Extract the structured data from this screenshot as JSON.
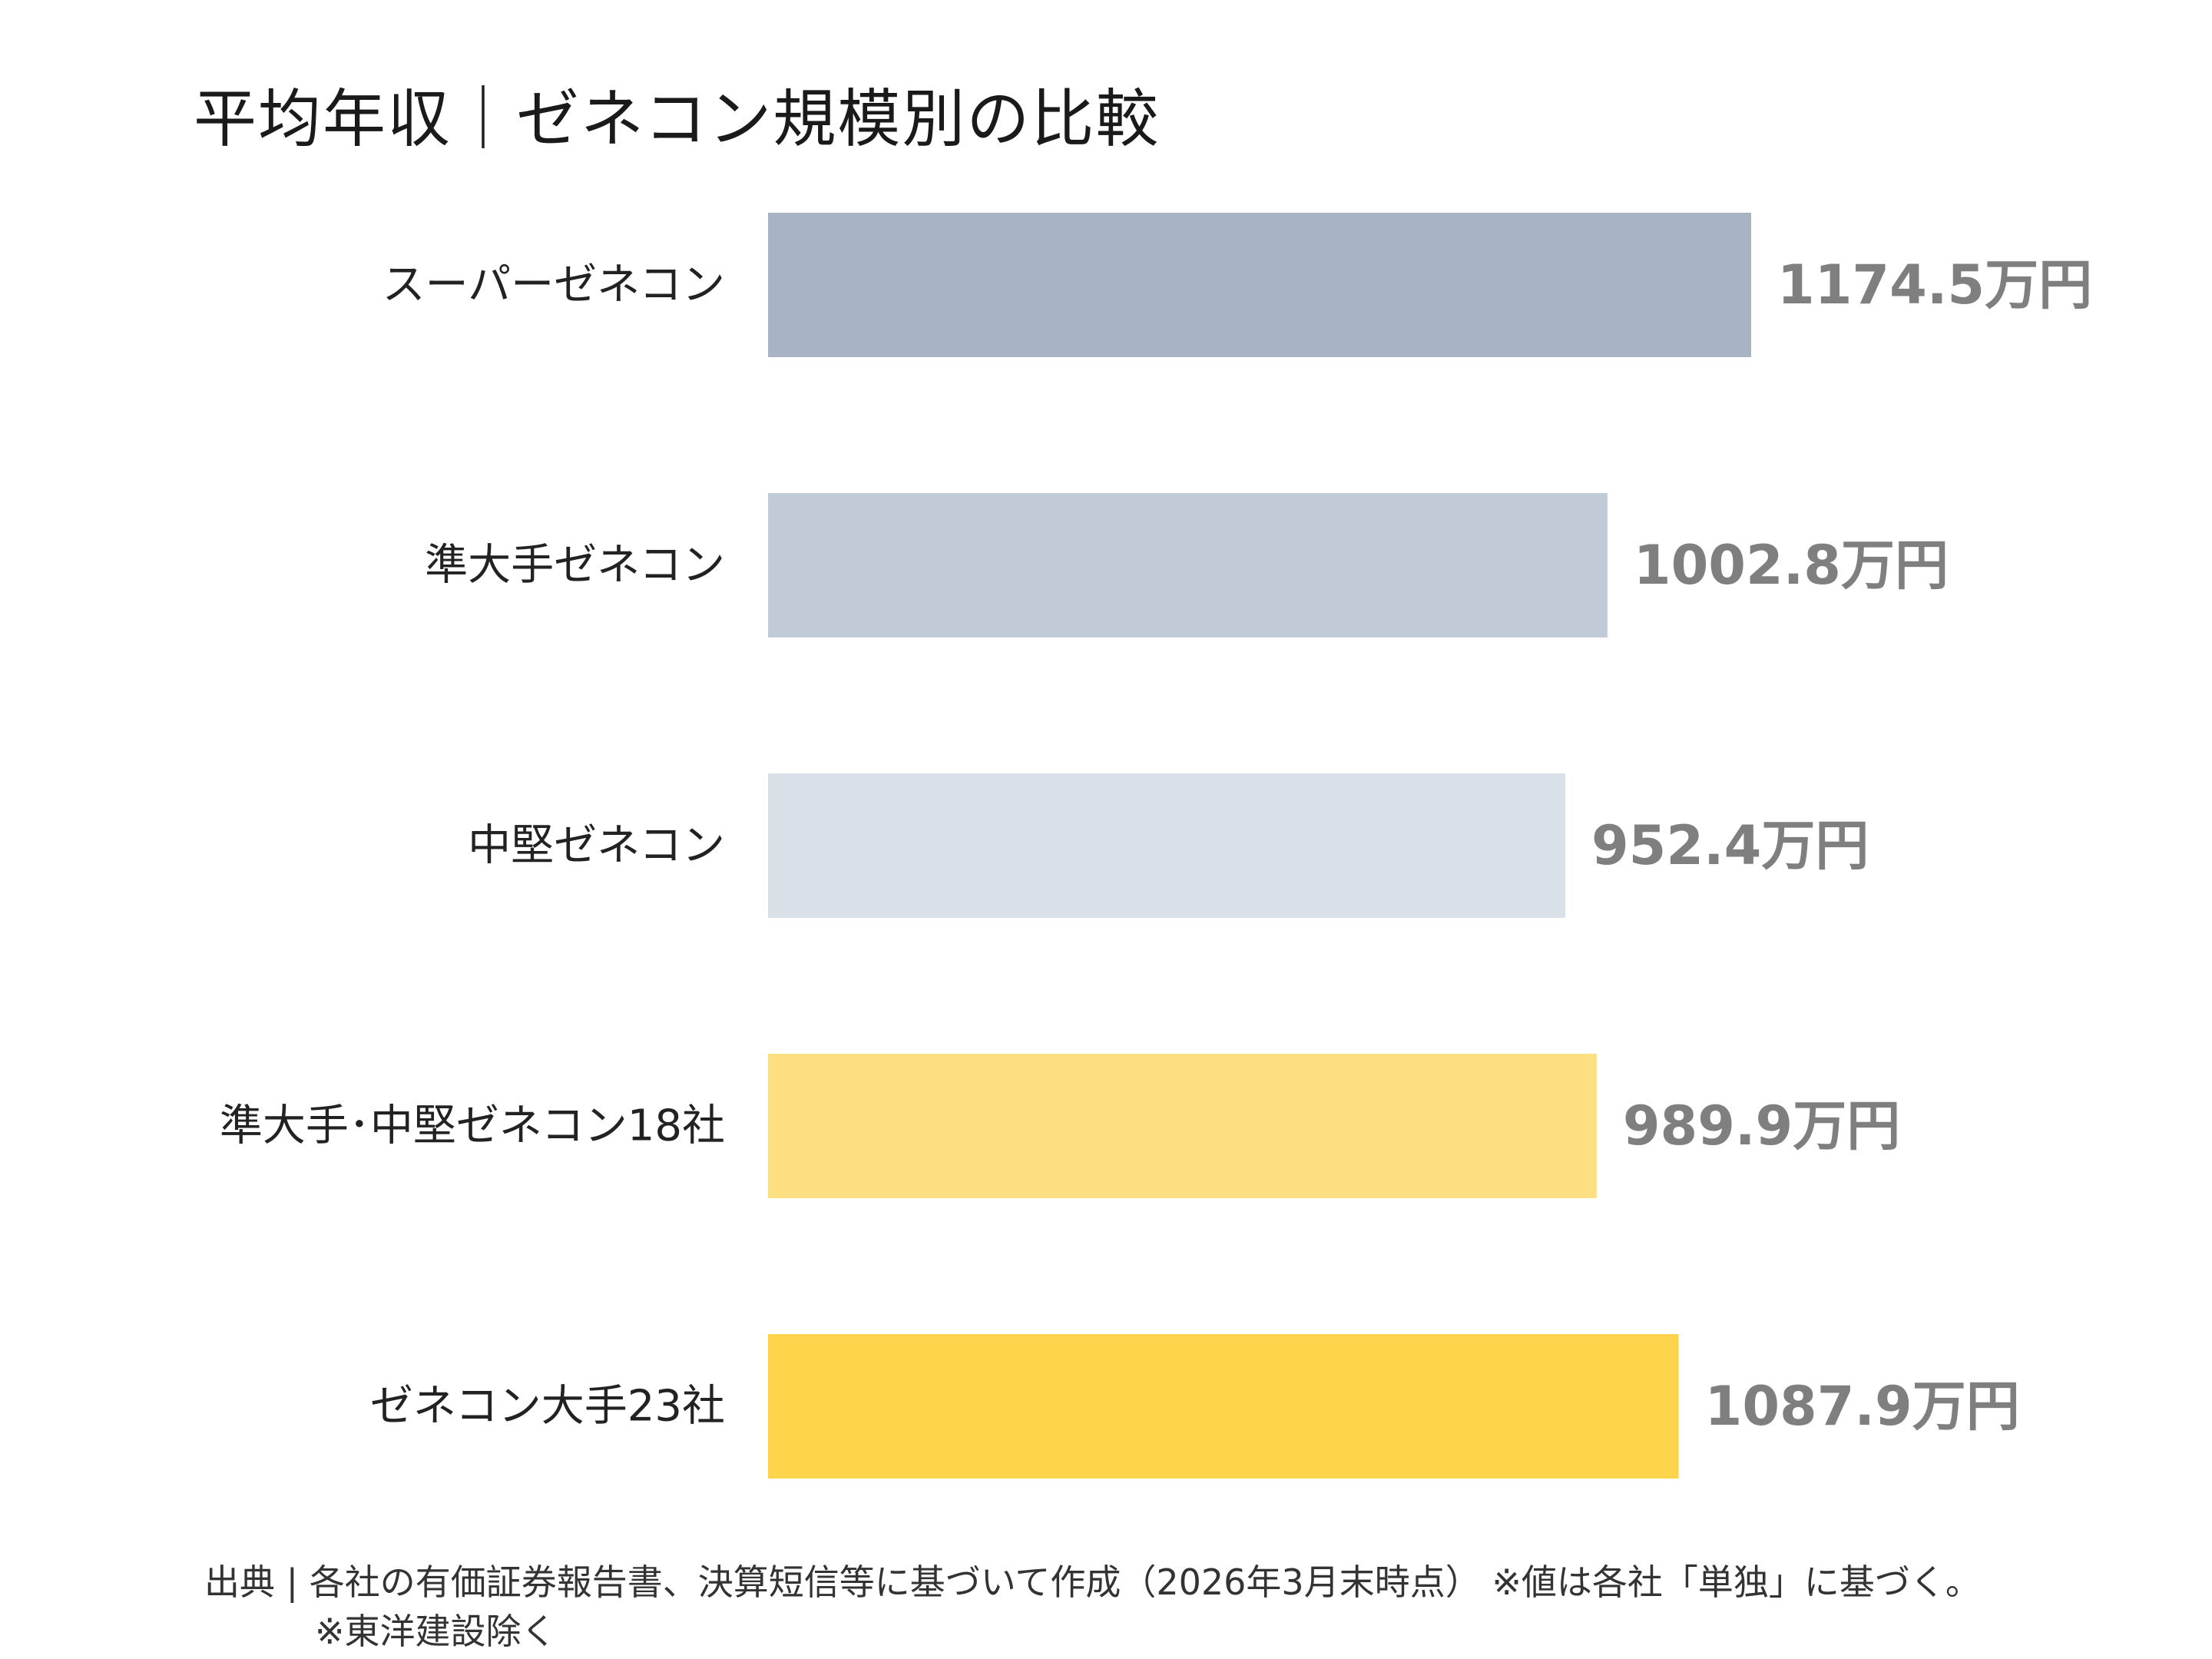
{
  "chart_data": {
    "type": "bar",
    "orientation": "horizontal",
    "title": "平均年収｜ゼネコン規模別の比較",
    "categories": [
      "スーパーゼネコン",
      "準大手ゼネコン",
      "中堅ゼネコン",
      "準大手･中堅ゼネコン18社",
      "ゼネコン大手23社"
    ],
    "values": [
      1174.5,
      1002.8,
      952.4,
      989.9,
      1087.9
    ],
    "value_labels": [
      "1174.5万円",
      "1002.8万円",
      "952.4万円",
      "989.9万円",
      "1087.9万円"
    ],
    "unit": "万円",
    "xlabel": "",
    "ylabel": "",
    "xlim": [
      0,
      1174.5
    ],
    "grid": false,
    "legend": "none",
    "colors": [
      "#a8b4c5",
      "#c1cbd7",
      "#d9e0e8",
      "#fddf82",
      "#fed44c"
    ]
  },
  "footer": {
    "source": "出典 | 各社の有価証券報告書、決算短信等に基づいて作成（2026年3月末時点） ※値は各社「単独」に基づく。",
    "note": "※東洋建設除く"
  },
  "colors": {
    "value_label": "#7f7f7f",
    "category_label": "#222222"
  }
}
